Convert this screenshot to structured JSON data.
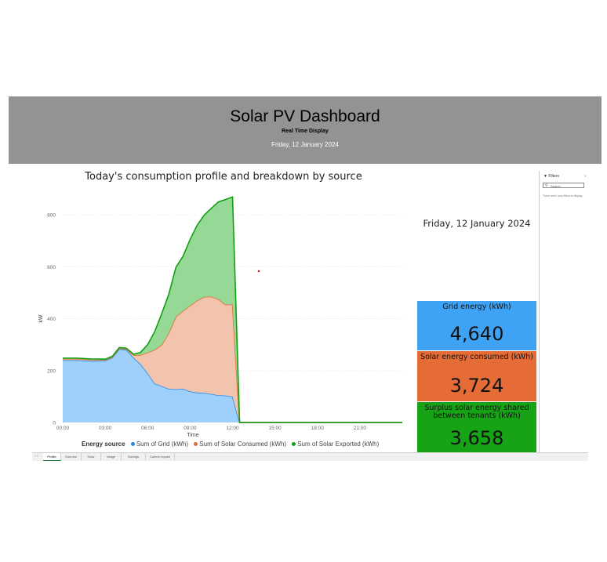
{
  "header": {
    "title": "Solar PV Dashboard",
    "subtitle": "Real Time Display",
    "date": "Friday, 12 January 2024"
  },
  "date_card": "Friday, 12 January 2024",
  "cards": [
    {
      "label": "Grid energy (kWh)",
      "value": "4,640",
      "color": "#3fa3f5"
    },
    {
      "label": "Solar energy consumed (kWh)",
      "value": "3,724",
      "color": "#e66c37"
    },
    {
      "label": "Surplus solar energy shared between tenants (kWh)",
      "value": "3,658",
      "color": "#16a316"
    }
  ],
  "legend": {
    "title": "Energy source",
    "items": [
      {
        "label": "Sum of Grid (kWh)",
        "color": "#1f8ceb"
      },
      {
        "label": "Sum of Solar Consumed (kWh)",
        "color": "#e66c37"
      },
      {
        "label": "Sum of Solar Exported (kWh)",
        "color": "#12a012"
      }
    ]
  },
  "filters": {
    "title": "Filters",
    "search_placeholder": "Search",
    "note": "There aren't any filters to display."
  },
  "tabs": [
    "Profile",
    "Sources",
    "Solar",
    "Usage",
    "Savings",
    "Carbon Impact"
  ],
  "chart_data": {
    "type": "area",
    "title": "Today's consumption profile and breakdown by source",
    "xlabel": "Time",
    "ylabel": "kW",
    "ylim": [
      0,
      900
    ],
    "xlim_hours": [
      0,
      24
    ],
    "x_ticks": [
      "00:00",
      "03:00",
      "06:00",
      "09:00",
      "12:00",
      "15:00",
      "18:00",
      "21:00"
    ],
    "y_ticks": [
      0,
      200,
      400,
      600,
      800
    ],
    "stacked": true,
    "x": [
      0,
      1,
      2,
      3,
      3.5,
      4,
      4.5,
      5,
      5.5,
      6,
      6.5,
      7,
      7.5,
      8,
      8.5,
      9,
      9.5,
      10,
      10.5,
      11,
      11.5,
      12,
      12.5,
      24
    ],
    "series": [
      {
        "name": "Sum of Grid (kWh)",
        "values": [
          240,
          240,
          237,
          238,
          250,
          283,
          280,
          250,
          225,
          190,
          150,
          140,
          130,
          128,
          130,
          120,
          115,
          114,
          110,
          105,
          104,
          100,
          0,
          0
        ]
      },
      {
        "name": "Sum of Solar Consumed (kWh)",
        "values": [
          5,
          5,
          5,
          3,
          2,
          3,
          3,
          10,
          35,
          80,
          130,
          160,
          215,
          280,
          300,
          330,
          355,
          370,
          375,
          370,
          350,
          355,
          0,
          0
        ]
      },
      {
        "name": "Sum of Solar Exported (kWh)",
        "values": [
          3,
          3,
          3,
          3,
          3,
          3,
          3,
          3,
          10,
          30,
          70,
          120,
          150,
          190,
          210,
          255,
          290,
          315,
          340,
          375,
          405,
          414,
          0,
          0
        ]
      }
    ],
    "colors": [
      "#9fd0fb",
      "#f3c4ad",
      "#96d996"
    ],
    "line_colors": [
      "#1f8ceb",
      "#e66c37",
      "#12a012"
    ]
  }
}
